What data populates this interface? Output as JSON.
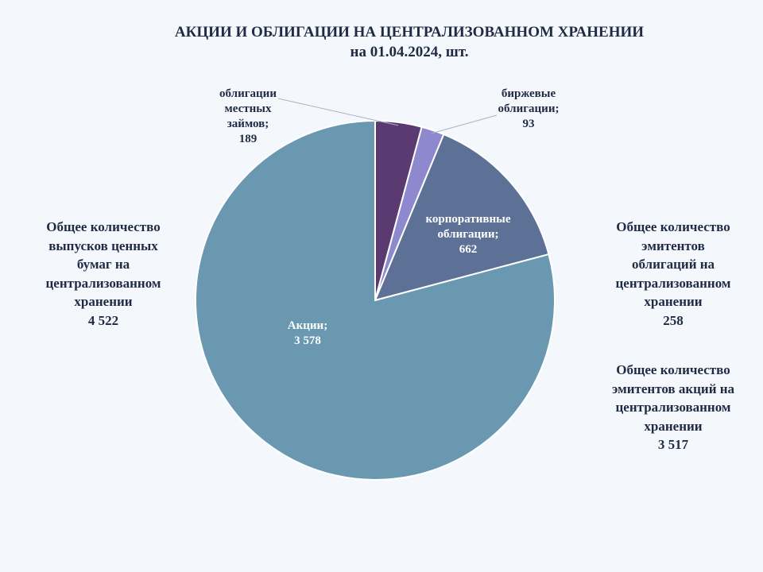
{
  "title": {
    "line1": "АКЦИИ И ОБЛИГАЦИИ НА ЦЕНТРАЛИЗОВАННОМ ХРАНЕНИИ",
    "line2": "на 01.04.2024, шт."
  },
  "summaries": [
    {
      "lines": [
        "Общее количество",
        "выпусков ценных",
        "бумаг на",
        "централизованном",
        "хранении"
      ],
      "value": "4 522"
    },
    {
      "lines": [
        "Общее количество",
        "эмитентов",
        "облигаций на",
        "централизованном",
        "хранении"
      ],
      "value": "258"
    },
    {
      "lines": [
        "Общее количество",
        "эмитентов акций на",
        "централизованном",
        "хранении"
      ],
      "value": "3 517"
    }
  ],
  "chart_data": {
    "type": "pie",
    "title": "АКЦИИ И ОБЛИГАЦИИ НА ЦЕНТРАЛИЗОВАННОМ ХРАНЕНИИ на 01.04.2024, шт.",
    "slices": [
      {
        "label_lines": [
          "облигации",
          "местных",
          "займов;"
        ],
        "value": 189,
        "value_text": "189",
        "color": "#5a3a70",
        "label_color": "#1f2a44"
      },
      {
        "label_lines": [
          "биржевые",
          "облигации;"
        ],
        "value": 93,
        "value_text": "93",
        "color": "#8e88cf",
        "label_color": "#1f2a44"
      },
      {
        "label_lines": [
          "корпоративные",
          "облигации;"
        ],
        "value": 662,
        "value_text": "662",
        "color": "#5d7197",
        "label_color": "#ffffff"
      },
      {
        "label_lines": [
          "Акции;"
        ],
        "value": 3578,
        "value_text": "3 578",
        "color": "#6a98b0",
        "label_color": "#ffffff"
      }
    ]
  }
}
